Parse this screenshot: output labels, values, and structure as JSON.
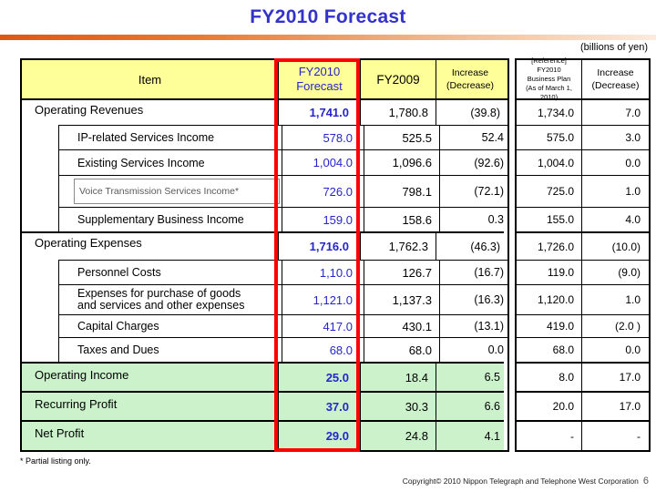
{
  "slide": {
    "title": "FY2010 Forecast",
    "unit_note": "(billions of yen)",
    "footnote": "* Partial listing only.",
    "copyright": "Copyright© 2010 Nippon Telegraph and Telephone West Corporation",
    "page_number": "6"
  },
  "colors": {
    "title_blue": "#3333CC",
    "value_blue": "#2525CC",
    "header_yellow": "#FFFF99",
    "profit_row_green": "#CCF2CC",
    "highlight_red": "#FF0000",
    "accent_orange": "#DC5812"
  },
  "main_table": {
    "header": {
      "item": "Item",
      "fy2010_line1": "FY2010",
      "fy2010_line2": "Forecast",
      "fy2009": "FY2009",
      "increase_line1": "Increase",
      "increase_line2": "(Decrease)"
    },
    "rows": [
      {
        "label": "Operating Revenues",
        "fy2010": "1,741.0",
        "fy2009": "1,780.8",
        "increase": "(39.8)"
      },
      {
        "label": "IP-related Services Income",
        "fy2010": "578.0",
        "fy2009": "525.5",
        "increase": "52.4"
      },
      {
        "label": "Existing Services Income",
        "fy2010": "1,004.0",
        "fy2009": "1,096.6",
        "increase": "(92.6)"
      },
      {
        "label": "Voice Transmission Services Income*",
        "fy2010": "726.0",
        "fy2009": "798.1",
        "increase": "(72.1)"
      },
      {
        "label": "Supplementary Business Income",
        "fy2010": "159.0",
        "fy2009": "158.6",
        "increase": "0.3"
      },
      {
        "label": "Operating Expenses",
        "fy2010": "1,716.0",
        "fy2009": "1,762.3",
        "increase": "(46.3)"
      },
      {
        "label": "Personnel Costs",
        "fy2010": "1,10.0",
        "fy2009": "126.7",
        "increase": "(16.7)"
      },
      {
        "label": "Expenses for purchase of goods",
        "label2": "and services and other expenses",
        "fy2010": "1,121.0",
        "fy2009": "1,137.3",
        "increase": "(16.3)"
      },
      {
        "label": "Capital Charges",
        "fy2010": "417.0",
        "fy2009": "430.1",
        "increase": "(13.1)"
      },
      {
        "label": "Taxes and Dues",
        "fy2010": "68.0",
        "fy2009": "68.0",
        "increase": "0.0"
      },
      {
        "label": "Operating Income",
        "fy2010": "25.0",
        "fy2009": "18.4",
        "increase": "6.5"
      },
      {
        "label": "Recurring Profit",
        "fy2010": "37.0",
        "fy2009": "30.3",
        "increase": "6.6"
      },
      {
        "label": "Net Profit",
        "fy2010": "29.0",
        "fy2009": "24.8",
        "increase": "4.1"
      }
    ]
  },
  "reference_table": {
    "header": {
      "plan_line1": "[Reference]",
      "plan_line2": "FY2010",
      "plan_line3": "Business Plan",
      "plan_line4": "(As of March 1, 2010)",
      "increase_line1": "Increase",
      "increase_line2": "(Decrease)"
    },
    "rows": [
      {
        "plan": "1,734.0",
        "increase": "7.0"
      },
      {
        "plan": "575.0",
        "increase": "3.0"
      },
      {
        "plan": "1,004.0",
        "increase": "0.0"
      },
      {
        "plan": "725.0",
        "increase": "1.0"
      },
      {
        "plan": "155.0",
        "increase": "4.0"
      },
      {
        "plan": "1,726.0",
        "increase": "(10.0)"
      },
      {
        "plan": "119.0",
        "increase": "(9.0)"
      },
      {
        "plan": "1,120.0",
        "increase": "1.0"
      },
      {
        "plan": "419.0",
        "increase": "(2.0 )"
      },
      {
        "plan": "68.0",
        "increase": "0.0"
      },
      {
        "plan": "8.0",
        "increase": "17.0"
      },
      {
        "plan": "20.0",
        "increase": "17.0"
      },
      {
        "plan": "-",
        "increase": "-"
      }
    ]
  }
}
